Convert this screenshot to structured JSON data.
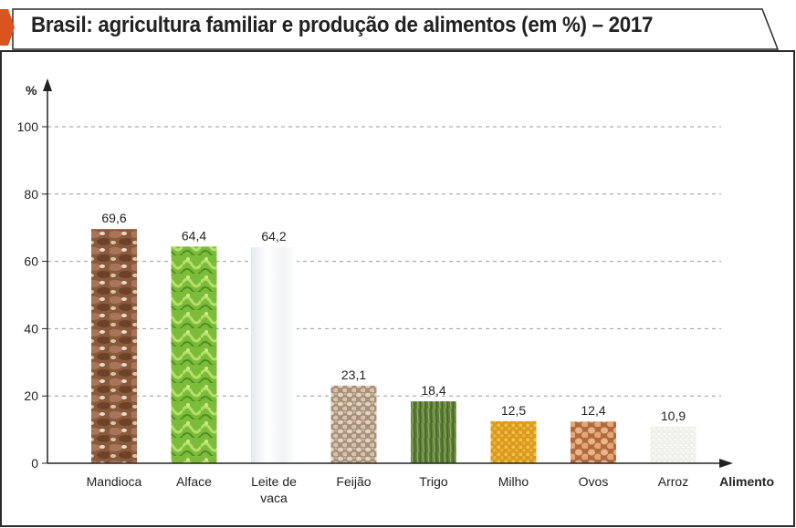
{
  "title": "Brasil: agricultura familiar e produção de alimentos (em %) – 2017",
  "colors": {
    "accent": "#d9541e",
    "frame": "#2b2b2b",
    "grid": "#9a9a9a",
    "text": "#222222"
  },
  "chart_data": {
    "type": "bar",
    "title": "Brasil: agricultura familiar e produção de alimentos (em %) – 2017",
    "xlabel": "Alimento",
    "ylabel": "%",
    "ylim": [
      0,
      100
    ],
    "yticks": [
      0,
      20,
      40,
      60,
      80,
      100
    ],
    "ytick_labels": [
      "0",
      "20",
      "40",
      "60",
      "80",
      "100"
    ],
    "grid": true,
    "categories": [
      "Mandioca",
      "Alface",
      "Leite de vaca",
      "Feijão",
      "Trigo",
      "Milho",
      "Ovos",
      "Arroz"
    ],
    "category_lines": [
      [
        "Mandioca"
      ],
      [
        "Alface"
      ],
      [
        "Leite de",
        "vaca"
      ],
      [
        "Feijão"
      ],
      [
        "Trigo"
      ],
      [
        "Milho"
      ],
      [
        "Ovos"
      ],
      [
        "Arroz"
      ]
    ],
    "values": [
      69.6,
      64.4,
      64.2,
      23.1,
      18.4,
      12.5,
      12.4,
      10.9
    ],
    "value_labels": [
      "69,6",
      "64,4",
      "64,2",
      "23,1",
      "18,4",
      "12,5",
      "12,4",
      "10,9"
    ],
    "bar_fill": [
      "cassava-photo",
      "lettuce-photo",
      "milk-bottle-photo",
      "beans-photo",
      "wheat-field-photo",
      "corn-kernels-photo",
      "eggs-photo",
      "rice-photo"
    ]
  }
}
